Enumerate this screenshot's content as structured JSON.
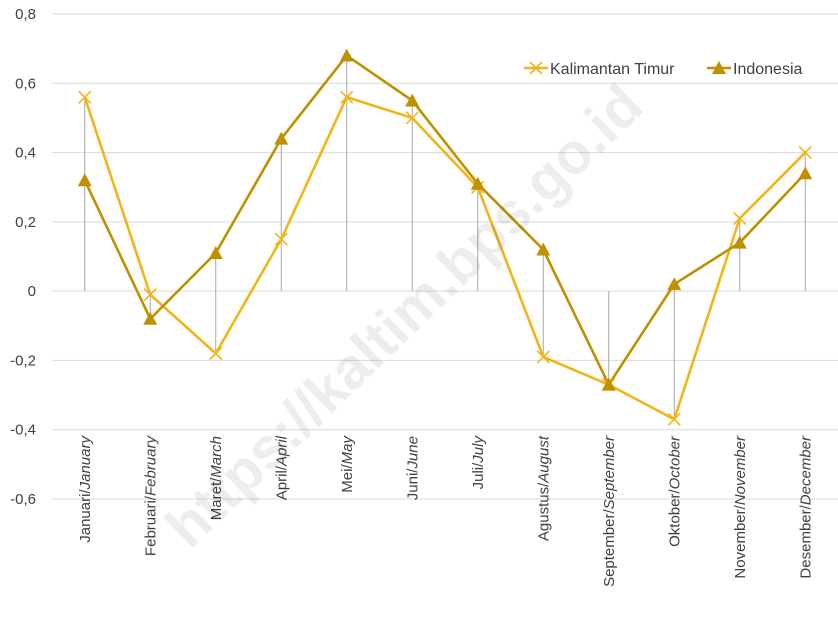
{
  "chart_data": {
    "type": "line",
    "categories": [
      {
        "id": "Januari",
        "en": "January"
      },
      {
        "id": "Februari",
        "en": "February"
      },
      {
        "id": "Maret",
        "en": "March"
      },
      {
        "id": "April",
        "en": "April"
      },
      {
        "id": "Mei",
        "en": "May"
      },
      {
        "id": "Juni",
        "en": "June"
      },
      {
        "id": "Juli",
        "en": "July"
      },
      {
        "id": "Agustus",
        "en": "August"
      },
      {
        "id": "September",
        "en": "September"
      },
      {
        "id": "Oktober",
        "en": "October"
      },
      {
        "id": "November",
        "en": "November"
      },
      {
        "id": "Desember",
        "en": "December"
      }
    ],
    "series": [
      {
        "name": "Kalimantan Timur",
        "color": "#f2b517",
        "marker": "x",
        "values": [
          0.56,
          -0.01,
          -0.18,
          0.15,
          0.56,
          0.5,
          0.3,
          -0.19,
          -0.27,
          -0.37,
          0.21,
          0.4
        ]
      },
      {
        "name": "Indonesia",
        "color": "#bf9000",
        "marker": "triangle",
        "values": [
          0.32,
          -0.08,
          0.11,
          0.44,
          0.68,
          0.55,
          0.31,
          0.12,
          -0.27,
          0.02,
          0.14,
          0.34
        ]
      }
    ],
    "ylim": [
      -0.6,
      0.8
    ],
    "yticks": [
      -0.6,
      -0.4,
      -0.2,
      0,
      0.2,
      0.4,
      0.6,
      0.8
    ],
    "ytick_labels": [
      "-0,6",
      "-0,4",
      "-0,2",
      "0",
      "0,2",
      "0,4",
      "0,6",
      "0,8"
    ],
    "grid": true,
    "drop_lines": true,
    "drop_line_color": "#a6a6a6",
    "legend_position": "top-right",
    "title": "",
    "xlabel": "",
    "ylabel": ""
  },
  "watermark": "https://kaltim.bps.go.id"
}
